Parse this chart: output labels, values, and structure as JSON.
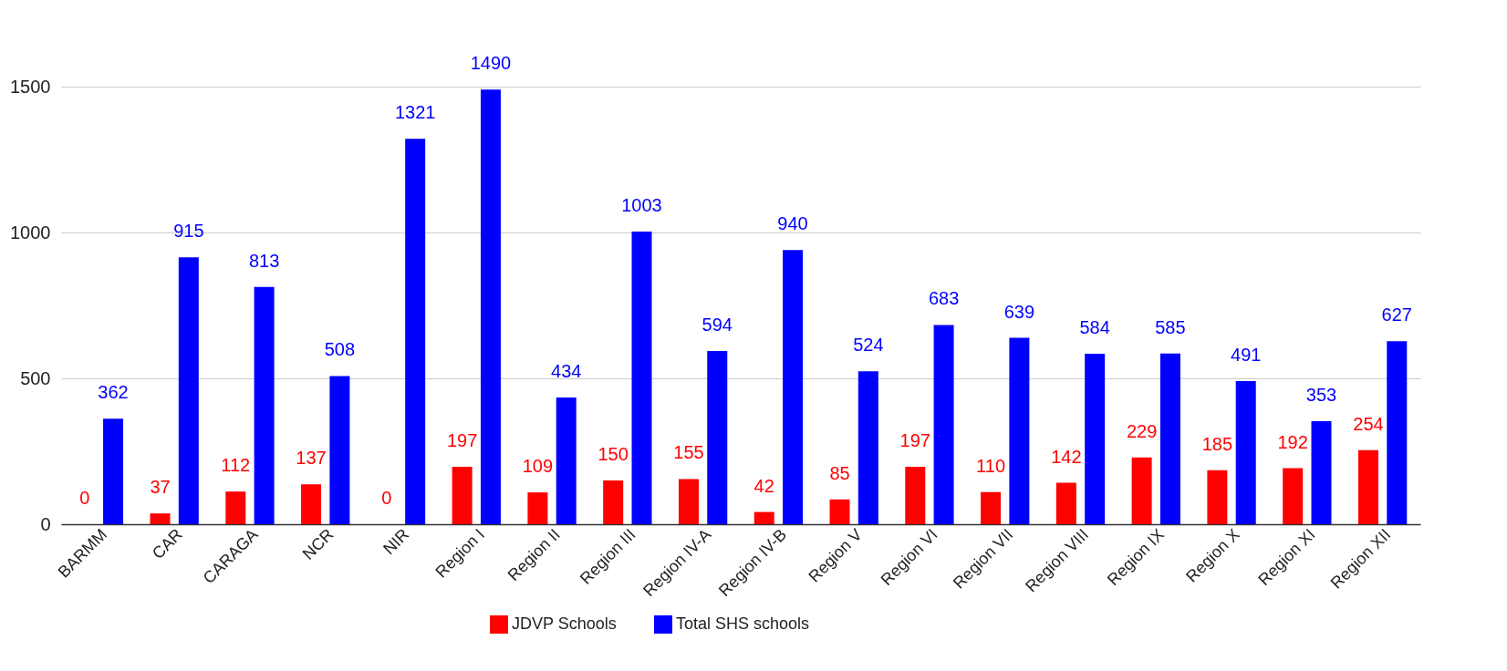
{
  "chart_data": {
    "type": "bar",
    "categories": [
      "BARMM",
      "CAR",
      "CARAGA",
      "NCR",
      "NIR",
      "Region I",
      "Region II",
      "Region III",
      "Region IV-A",
      "Region IV-B",
      "Region V",
      "Region VI",
      "Region VII",
      "Region VIII",
      "Region IX",
      "Region X",
      "Region XI",
      "Region XII"
    ],
    "series": [
      {
        "name": "JDVP Schools",
        "color": "#ff0000",
        "values": [
          0,
          37,
          112,
          137,
          0,
          197,
          109,
          150,
          155,
          42,
          85,
          197,
          110,
          142,
          229,
          185,
          192,
          254
        ]
      },
      {
        "name": "Total SHS schools",
        "color": "#0000ff",
        "values": [
          362,
          915,
          813,
          508,
          1321,
          1490,
          434,
          1003,
          594,
          940,
          524,
          683,
          639,
          584,
          585,
          491,
          353,
          627
        ]
      }
    ],
    "ylim": [
      0,
      1500
    ],
    "yticks": [
      0,
      500,
      1000,
      1500
    ],
    "grid": "y",
    "legend": "bottom",
    "data_labels": true
  }
}
